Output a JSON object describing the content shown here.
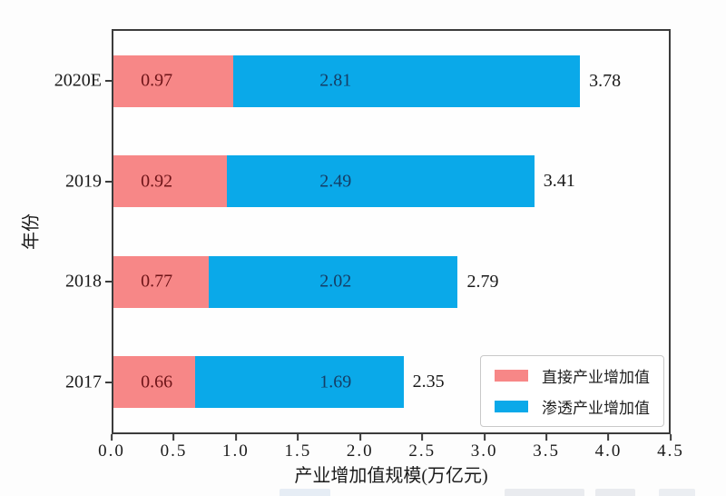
{
  "figure": {
    "background": "#fdfdfd"
  },
  "chart_data": {
    "type": "bar",
    "orientation": "horizontal",
    "stacked": true,
    "title": "",
    "xlabel": "产业增加值规模(万亿元)",
    "ylabel": "年份",
    "categories": [
      "2020E",
      "2019",
      "2018",
      "2017"
    ],
    "series": [
      {
        "name": "直接产业增加值",
        "color": "#F78787",
        "label_color": "#6E1418",
        "values": [
          0.97,
          0.92,
          0.77,
          0.66
        ]
      },
      {
        "name": "渗透产业增加值",
        "color": "#0AA9E9",
        "label_color": "#153E66",
        "values": [
          2.81,
          2.49,
          2.02,
          1.69
        ]
      }
    ],
    "totals": [
      3.78,
      3.41,
      2.79,
      2.35
    ],
    "xlim": [
      0,
      4.5
    ],
    "xticks": [
      "0.0",
      "0.5",
      "1.0",
      "1.5",
      "2.0",
      "2.5",
      "3.0",
      "3.5",
      "4.0",
      "4.5"
    ],
    "grid": false,
    "legend_position": "lower right",
    "value_label_x": [
      0.35,
      1.8
    ],
    "axis_color": "#3c3c3c",
    "text_color": "#1a1a1a"
  }
}
